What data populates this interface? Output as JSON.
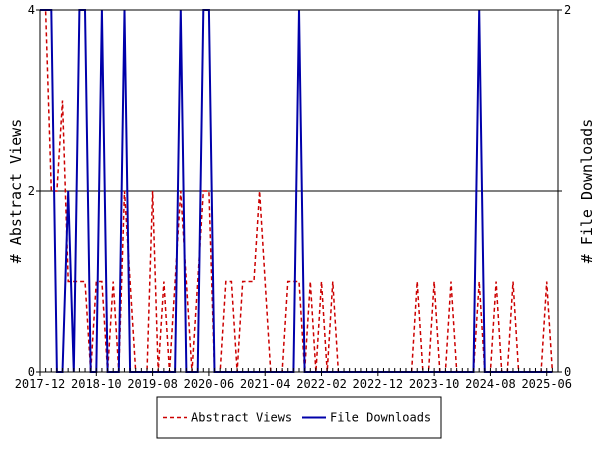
{
  "chart_data": {
    "type": "line",
    "title": "",
    "ylabel_left": "# Abstract Views",
    "ylabel_right": "# File Downloads",
    "ylim_left": [
      0,
      4
    ],
    "ylim_right": [
      0,
      2
    ],
    "yticks_left": [
      "0",
      "2",
      "4"
    ],
    "yticks_right": [
      "0",
      "",
      "2"
    ],
    "x_range_months": [
      "2017-12",
      "2025-08"
    ],
    "xticks": [
      "2017-12",
      "2018-10",
      "2019-08",
      "2020-06",
      "2021-04",
      "2022-02",
      "2022-12",
      "2023-10",
      "2024-08",
      "2025-06"
    ],
    "legend_position": "bottom-center",
    "series": [
      {
        "name": "Abstract Views",
        "axis": "left",
        "color": "#cc0000",
        "dash": "dashed",
        "points": [
          [
            "2017-12",
            4
          ],
          [
            "2018-01",
            4
          ],
          [
            "2018-02",
            2
          ],
          [
            "2018-03",
            2
          ],
          [
            "2018-04",
            3
          ],
          [
            "2018-05",
            1
          ],
          [
            "2018-06",
            1
          ],
          [
            "2018-07",
            1
          ],
          [
            "2018-08",
            1
          ],
          [
            "2018-09",
            0
          ],
          [
            "2018-10",
            1
          ],
          [
            "2018-11",
            1
          ],
          [
            "2018-12",
            0
          ],
          [
            "2019-01",
            1
          ],
          [
            "2019-02",
            0
          ],
          [
            "2019-03",
            2
          ],
          [
            "2019-04",
            1
          ],
          [
            "2019-05",
            0
          ],
          [
            "2019-06",
            0
          ],
          [
            "2019-07",
            0
          ],
          [
            "2019-08",
            2
          ],
          [
            "2019-09",
            0
          ],
          [
            "2019-10",
            1
          ],
          [
            "2019-11",
            0
          ],
          [
            "2019-12",
            1
          ],
          [
            "2020-01",
            2
          ],
          [
            "2020-02",
            1
          ],
          [
            "2020-03",
            0
          ],
          [
            "2020-04",
            1
          ],
          [
            "2020-05",
            2
          ],
          [
            "2020-06",
            2
          ],
          [
            "2020-07",
            0
          ],
          [
            "2020-08",
            0
          ],
          [
            "2020-09",
            1
          ],
          [
            "2020-10",
            1
          ],
          [
            "2020-11",
            0
          ],
          [
            "2020-12",
            1
          ],
          [
            "2021-01",
            1
          ],
          [
            "2021-02",
            1
          ],
          [
            "2021-03",
            2
          ],
          [
            "2021-04",
            1
          ],
          [
            "2021-05",
            0
          ],
          [
            "2021-06",
            0
          ],
          [
            "2021-07",
            0
          ],
          [
            "2021-08",
            1
          ],
          [
            "2021-09",
            1
          ],
          [
            "2021-10",
            1
          ],
          [
            "2021-11",
            0
          ],
          [
            "2021-12",
            1
          ],
          [
            "2022-01",
            0
          ],
          [
            "2022-02",
            1
          ],
          [
            "2022-03",
            0
          ],
          [
            "2022-04",
            1
          ],
          [
            "2022-05",
            0
          ],
          [
            "2022-06",
            0
          ],
          [
            "2022-07",
            0
          ],
          [
            "2022-08",
            0
          ],
          [
            "2022-09",
            0
          ],
          [
            "2022-10",
            0
          ],
          [
            "2022-11",
            0
          ],
          [
            "2022-12",
            0
          ],
          [
            "2023-01",
            0
          ],
          [
            "2023-02",
            0
          ],
          [
            "2023-03",
            0
          ],
          [
            "2023-04",
            0
          ],
          [
            "2023-05",
            0
          ],
          [
            "2023-06",
            0
          ],
          [
            "2023-07",
            1
          ],
          [
            "2023-08",
            0
          ],
          [
            "2023-09",
            0
          ],
          [
            "2023-10",
            1
          ],
          [
            "2023-11",
            0
          ],
          [
            "2023-12",
            0
          ],
          [
            "2024-01",
            1
          ],
          [
            "2024-02",
            0
          ],
          [
            "2024-03",
            0
          ],
          [
            "2024-04",
            0
          ],
          [
            "2024-05",
            0
          ],
          [
            "2024-06",
            1
          ],
          [
            "2024-07",
            0
          ],
          [
            "2024-08",
            0
          ],
          [
            "2024-09",
            1
          ],
          [
            "2024-10",
            0
          ],
          [
            "2024-11",
            0
          ],
          [
            "2024-12",
            1
          ],
          [
            "2025-01",
            0
          ],
          [
            "2025-02",
            0
          ],
          [
            "2025-03",
            0
          ],
          [
            "2025-04",
            0
          ],
          [
            "2025-05",
            0
          ],
          [
            "2025-06",
            1
          ],
          [
            "2025-07",
            0
          ]
        ]
      },
      {
        "name": "File Downloads",
        "axis": "right",
        "color": "#0000aa",
        "dash": "solid",
        "points": [
          [
            "2017-12",
            2
          ],
          [
            "2018-01",
            2
          ],
          [
            "2018-02",
            2
          ],
          [
            "2018-03",
            0
          ],
          [
            "2018-04",
            0
          ],
          [
            "2018-05",
            1
          ],
          [
            "2018-06",
            0
          ],
          [
            "2018-07",
            2
          ],
          [
            "2018-08",
            2
          ],
          [
            "2018-09",
            0
          ],
          [
            "2018-10",
            0
          ],
          [
            "2018-11",
            2
          ],
          [
            "2018-12",
            0
          ],
          [
            "2019-01",
            0
          ],
          [
            "2019-02",
            0
          ],
          [
            "2019-03",
            2
          ],
          [
            "2019-04",
            0
          ],
          [
            "2019-05",
            0
          ],
          [
            "2019-06",
            0
          ],
          [
            "2019-07",
            0
          ],
          [
            "2019-08",
            0
          ],
          [
            "2019-09",
            0
          ],
          [
            "2019-10",
            0
          ],
          [
            "2019-11",
            0
          ],
          [
            "2019-12",
            0
          ],
          [
            "2020-01",
            2
          ],
          [
            "2020-02",
            0
          ],
          [
            "2020-03",
            0
          ],
          [
            "2020-04",
            0
          ],
          [
            "2020-05",
            2
          ],
          [
            "2020-06",
            2
          ],
          [
            "2020-07",
            0
          ],
          [
            "2020-08",
            0
          ],
          [
            "2020-09",
            0
          ],
          [
            "2020-10",
            0
          ],
          [
            "2020-11",
            0
          ],
          [
            "2020-12",
            0
          ],
          [
            "2021-01",
            0
          ],
          [
            "2021-02",
            0
          ],
          [
            "2021-03",
            0
          ],
          [
            "2021-04",
            0
          ],
          [
            "2021-05",
            0
          ],
          [
            "2021-06",
            0
          ],
          [
            "2021-07",
            0
          ],
          [
            "2021-08",
            0
          ],
          [
            "2021-09",
            0
          ],
          [
            "2021-10",
            2
          ],
          [
            "2021-11",
            0
          ],
          [
            "2021-12",
            0
          ],
          [
            "2022-01",
            0
          ],
          [
            "2022-02",
            0
          ],
          [
            "2022-03",
            0
          ],
          [
            "2022-04",
            0
          ],
          [
            "2022-05",
            0
          ],
          [
            "2022-06",
            0
          ],
          [
            "2022-07",
            0
          ],
          [
            "2022-08",
            0
          ],
          [
            "2022-09",
            0
          ],
          [
            "2022-10",
            0
          ],
          [
            "2022-11",
            0
          ],
          [
            "2022-12",
            0
          ],
          [
            "2023-01",
            0
          ],
          [
            "2023-02",
            0
          ],
          [
            "2023-03",
            0
          ],
          [
            "2023-04",
            0
          ],
          [
            "2023-05",
            0
          ],
          [
            "2023-06",
            0
          ],
          [
            "2023-07",
            0
          ],
          [
            "2023-08",
            0
          ],
          [
            "2023-09",
            0
          ],
          [
            "2023-10",
            0
          ],
          [
            "2023-11",
            0
          ],
          [
            "2023-12",
            0
          ],
          [
            "2024-01",
            0
          ],
          [
            "2024-02",
            0
          ],
          [
            "2024-03",
            0
          ],
          [
            "2024-04",
            0
          ],
          [
            "2024-05",
            0
          ],
          [
            "2024-06",
            2
          ],
          [
            "2024-07",
            0
          ],
          [
            "2024-08",
            0
          ],
          [
            "2024-09",
            0
          ],
          [
            "2024-10",
            0
          ],
          [
            "2024-11",
            0
          ],
          [
            "2024-12",
            0
          ],
          [
            "2025-01",
            0
          ],
          [
            "2025-02",
            0
          ],
          [
            "2025-03",
            0
          ],
          [
            "2025-04",
            0
          ],
          [
            "2025-05",
            0
          ],
          [
            "2025-06",
            0
          ],
          [
            "2025-07",
            0
          ]
        ]
      }
    ]
  }
}
